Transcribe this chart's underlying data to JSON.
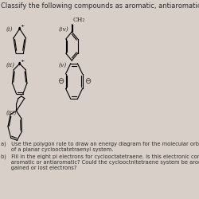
{
  "title": "Classify the following compounds as aromatic, antiaromatic, or nonaromatic.",
  "title_fontsize": 6.0,
  "text_color": "#2b2b2b",
  "bg_color": "#d8d0c8",
  "bottom_text_a": "a)   Use the polygon rule to draw an energy diagram for the molecular orbitals",
  "bottom_text_a2": "      of a planar cyclooctatetraenyl system.",
  "bottom_text_b": "b)   Fill in the eight pi electrons for cyclooctatetraene. Is this electronic conf",
  "bottom_text_b2": "      aromatic or antiaromatic? Could the cyclooctnitetraene system be aromat",
  "bottom_text_b3": "      gained or lost electrons?"
}
